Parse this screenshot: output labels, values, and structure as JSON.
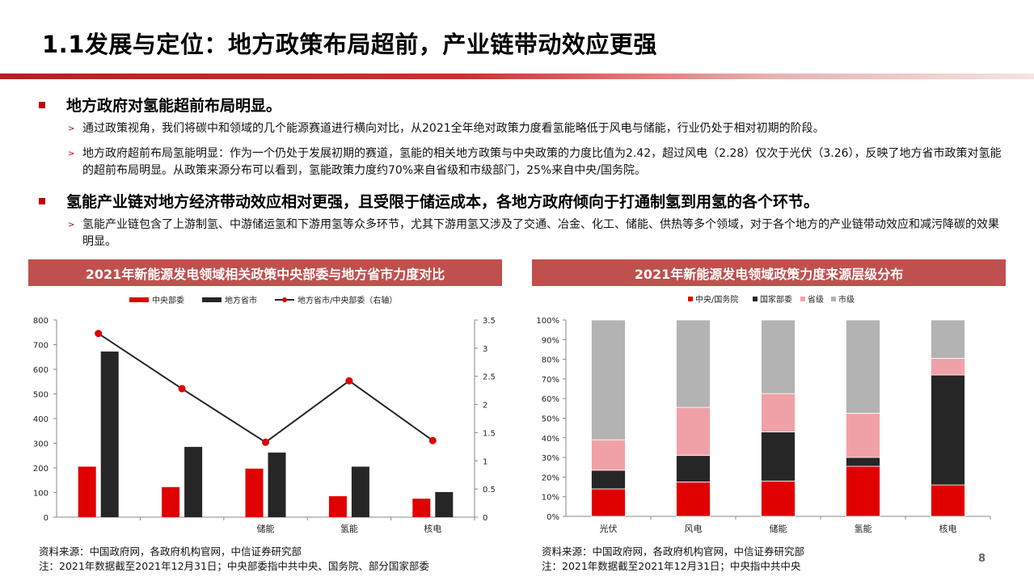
{
  "title": "1.1发展与定位：地方政策布局超前，产业链带动效应更强",
  "sections": [
    {
      "heading": "地方政府对氢能超前布局明显。",
      "points": [
        "通过政策视角，我们将碳中和领域的几个能源赛道进行横向对比，从2021全年绝对政策力度看氢能略低于风电与储能，行业仍处于相对初期的阶段。",
        "地方政府超前布局氢能明显：作为一个仍处于发展初期的赛道，氢能的相关地方政策与中央政策的力度比值为2.42，超过风电（2.28）仅次于光伏（3.26），反映了地方省市政策对氢能的超前布局明显。从政策来源分布可以看到，氢能政策力度约70%来自省级和市级部门，25%来自中央/国务院。"
      ]
    },
    {
      "heading": "氢能产业链对地方经济带动效应相对更强，且受限于储运成本，各地方政府倾向于打通制氢到用氢的各个环节。",
      "points": [
        "氢能产业链包含了上游制氢、中游储运氢和下游用氢等众多环节，尤其下游用氢又涉及了交通、冶金、化工、储能、供热等多个领域，对于各个地方的产业链带动效应和减污降碳的效果明显。"
      ]
    }
  ],
  "chart_data": [
    {
      "type": "bar",
      "title": "2021年新能源发电领域相关政策中央部委与地方省市力度对比",
      "categories": [
        "",
        "",
        "储能",
        "氢能",
        "核电"
      ],
      "series": [
        {
          "name": "中央部委",
          "kind": "bar",
          "axis": "left",
          "color": "#e00000",
          "values": [
            205,
            122,
            197,
            85,
            75
          ]
        },
        {
          "name": "地方省市",
          "kind": "bar",
          "axis": "left",
          "color": "#262626",
          "values": [
            672,
            285,
            262,
            205,
            102
          ]
        },
        {
          "name": "地方省市/中央部委（右轴）",
          "kind": "line",
          "axis": "right",
          "color": "#262626",
          "marker_color": "#e00000",
          "values": [
            3.26,
            2.28,
            1.33,
            2.42,
            1.36
          ]
        }
      ],
      "ylim": [
        0,
        800
      ],
      "yticks": [
        "0",
        "100",
        "200",
        "300",
        "400",
        "500",
        "600",
        "700",
        "800"
      ],
      "y2lim": [
        0,
        3.5
      ],
      "y2ticks": [
        "0",
        "0.5",
        "1",
        "1.5",
        "2",
        "2.5",
        "3",
        "3.5"
      ],
      "legend_position": "top"
    },
    {
      "type": "bar",
      "stacked": true,
      "title": "2021年新能源发电领域政策力度来源层级分布",
      "categories": [
        "光伏",
        "风电",
        "储能",
        "氢能",
        "核电"
      ],
      "series": [
        {
          "name": "中央/国务院",
          "color": "#e00000",
          "values": [
            14,
            17.5,
            18,
            25.5,
            16
          ]
        },
        {
          "name": "国家部委",
          "color": "#262626",
          "values": [
            9.5,
            13.5,
            25,
            4.5,
            56
          ]
        },
        {
          "name": "省级",
          "color": "#f0a1a8",
          "values": [
            15.5,
            24.5,
            19.5,
            22.5,
            8.5
          ]
        },
        {
          "name": "市级",
          "color": "#b3b3b3",
          "values": [
            61,
            44.5,
            37.5,
            47.5,
            19.5
          ]
        }
      ],
      "ylim": [
        0,
        100
      ],
      "yticks": [
        "0%",
        "10%",
        "20%",
        "30%",
        "40%",
        "50%",
        "60%",
        "70%",
        "80%",
        "90%",
        "100%"
      ],
      "legend_position": "top"
    }
  ],
  "source_left": [
    "资料来源：中国政府网，各政府机构官网，中信证券研究部",
    "注：2021年数据截至2021年12月31日；中央部委指中共中央、国务院、部分国家部委"
  ],
  "source_right": [
    "资料来源：中国政府网，各政府机构官网，中信证券研究部",
    "注：2021年数据截至2021年12月31日；中央指中共中央"
  ],
  "page_number": "8",
  "icons": {
    "bullet": "red-square-icon",
    "sub_bullet": "chevron-right-icon"
  }
}
